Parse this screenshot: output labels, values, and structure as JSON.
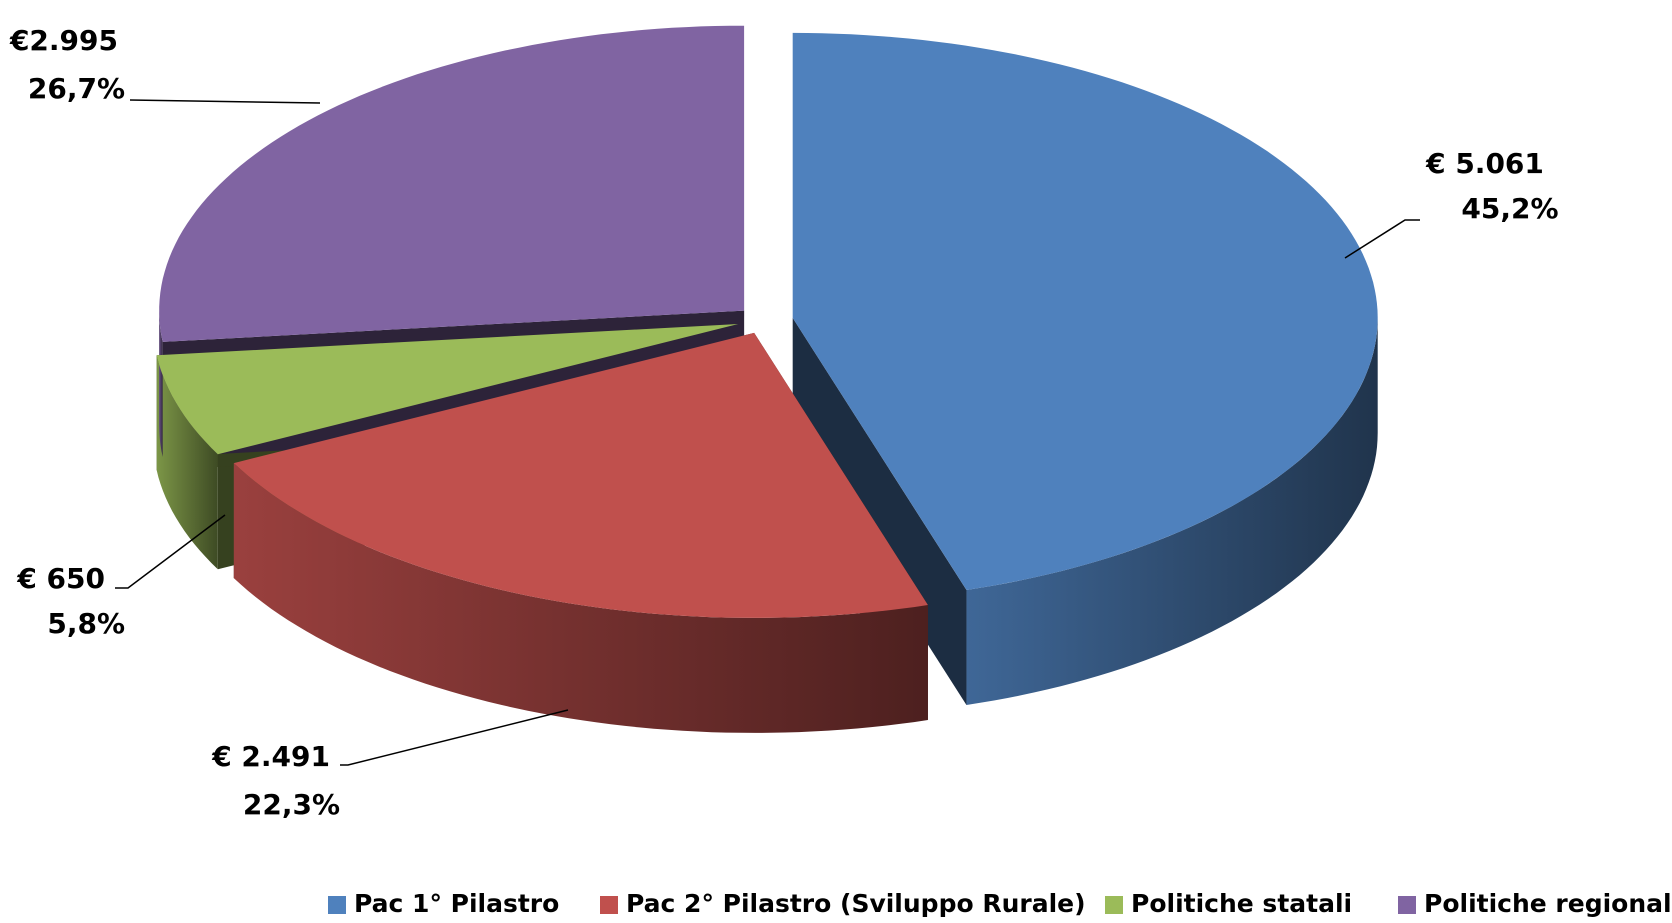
{
  "chart_data": {
    "type": "pie3d",
    "categories": [
      "Pac 1° Pilastro",
      "Pac 2° Pilastro (Sviluppo Rurale)",
      "Politiche statali",
      "Politiche regionali"
    ],
    "values": [
      5061,
      2491,
      650,
      2995
    ],
    "value_labels": [
      "€ 5.061",
      "€ 2.491",
      "€ 650",
      "€2.995"
    ],
    "percentages": [
      45.2,
      22.3,
      5.8,
      26.7
    ],
    "percentage_labels": [
      "45,2%",
      "22,3%",
      "5,8%",
      "26,7%"
    ],
    "colors": [
      "#4f81bd",
      "#c0504d",
      "#9bbb59",
      "#8064a2"
    ],
    "legend": "bottom"
  }
}
